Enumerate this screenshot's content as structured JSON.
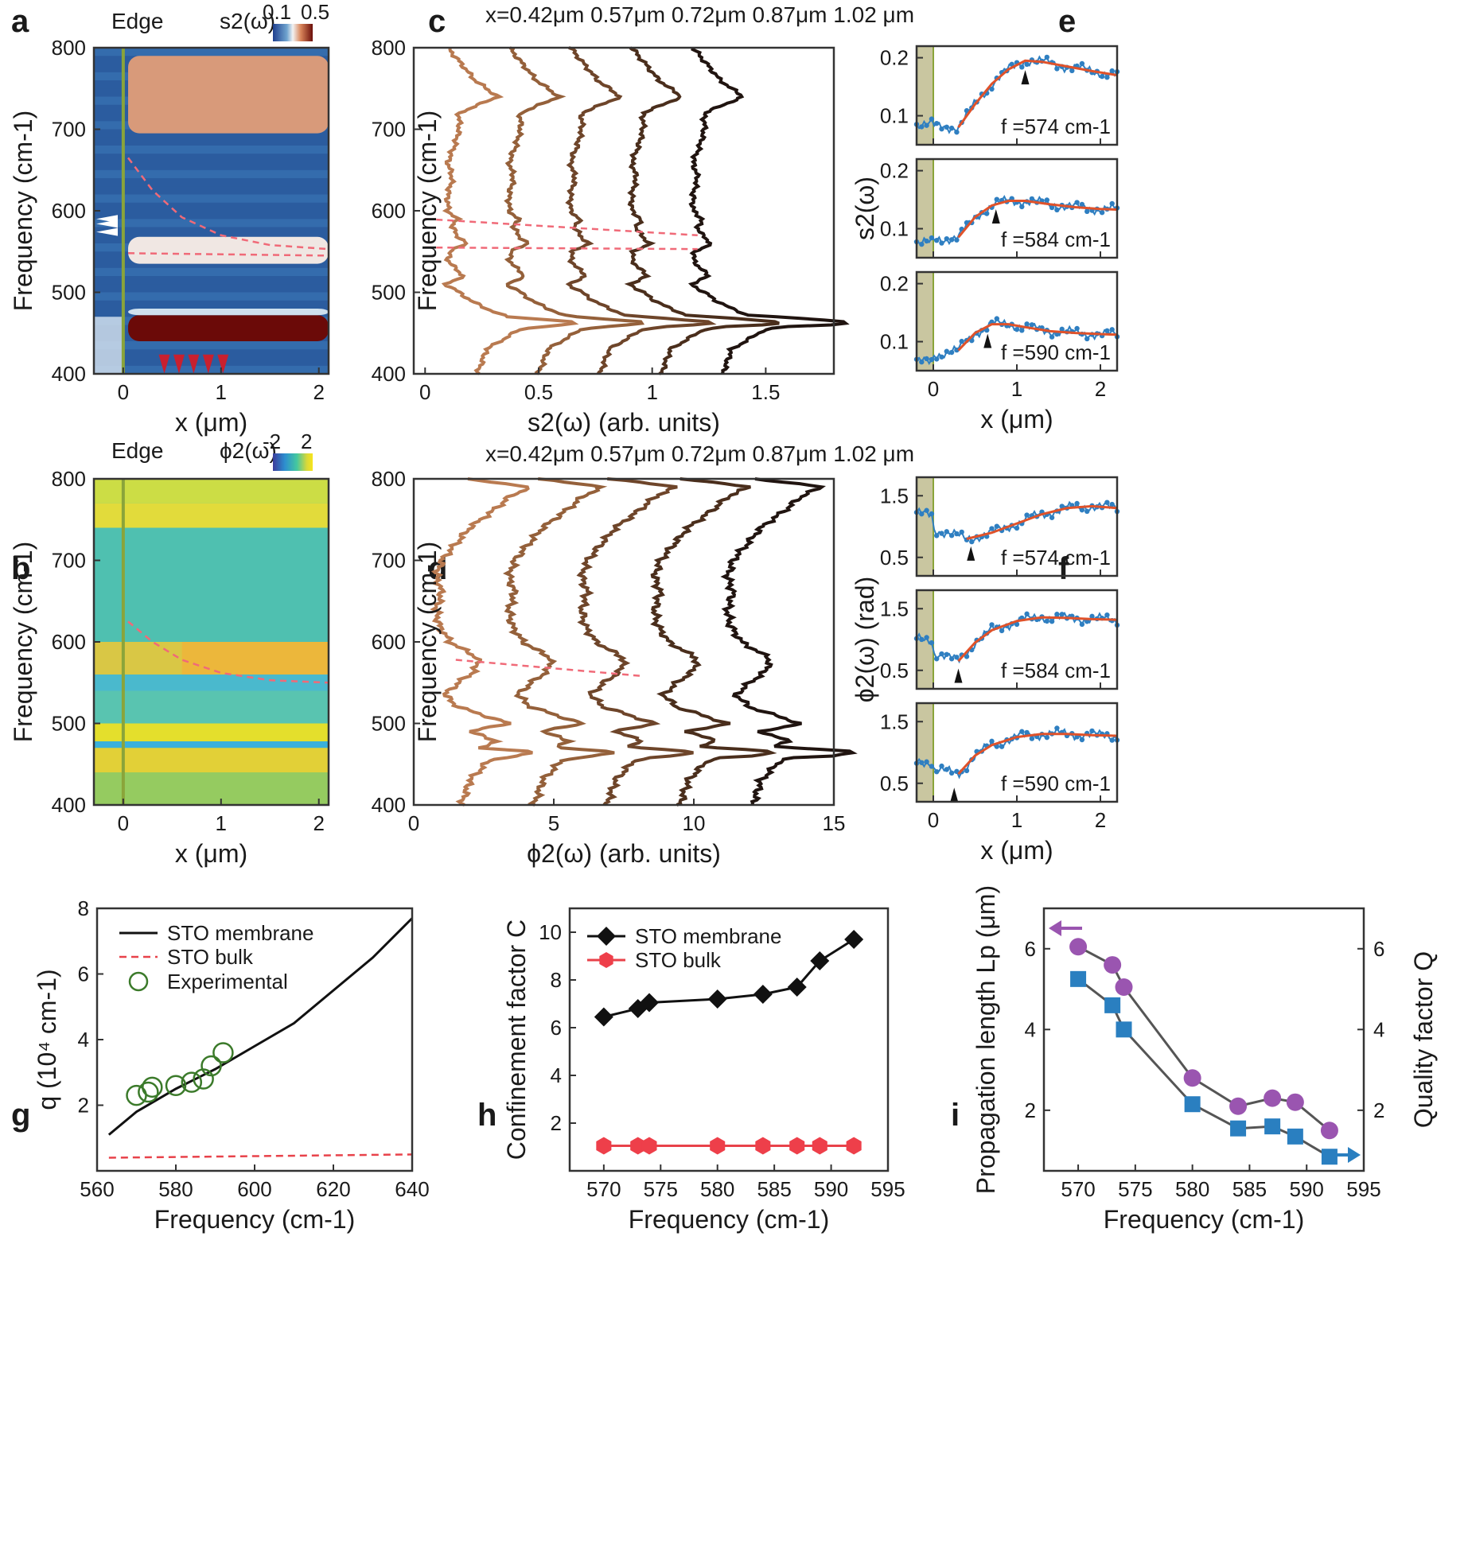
{
  "chart_data": [
    {
      "panel": "a",
      "type": "heatmap",
      "header": "Edge",
      "colorbar_label": "s2(ω)",
      "colorbar_ticks": [
        "0.1",
        "0.5"
      ],
      "xlabel": "x (μm)",
      "ylabel": "Frequency (cm-1)",
      "xlim": [
        -0.3,
        2.1
      ],
      "ylim": [
        400,
        800
      ],
      "xticks": [
        0,
        1,
        2
      ],
      "yticks": [
        400,
        500,
        600,
        700,
        800
      ],
      "edge_x": 0,
      "bands": [
        {
          "y0": 695,
          "y1": 790,
          "level": 0.72
        },
        {
          "y0": 535,
          "y1": 568,
          "level": 0.55
        },
        {
          "y0": 440,
          "y1": 472,
          "level": 1.0
        },
        {
          "y0": 472,
          "y1": 480,
          "level": 0.45
        }
      ],
      "dispersion_curve": [
        [
          0.05,
          665
        ],
        [
          0.3,
          625
        ],
        [
          0.6,
          592
        ],
        [
          1.0,
          570
        ],
        [
          1.5,
          558
        ],
        [
          2.1,
          553
        ]
      ],
      "flat_curve": [
        [
          0.05,
          548
        ],
        [
          2.1,
          545
        ]
      ],
      "arrow_x": [
        0.42,
        0.57,
        0.72,
        0.87,
        1.02
      ],
      "side_arrow_freqs": [
        574,
        584,
        590
      ]
    },
    {
      "panel": "b",
      "type": "heatmap",
      "header": "Edge",
      "colorbar_label": "ϕ2(ω)",
      "colorbar_ticks": [
        "-2",
        "2"
      ],
      "xlabel": "x (μm)",
      "ylabel": "Frequency (cm-1)",
      "xlim": [
        -0.3,
        2.1
      ],
      "ylim": [
        400,
        800
      ],
      "xticks": [
        0,
        1,
        2
      ],
      "yticks": [
        400,
        500,
        600,
        700,
        800
      ],
      "dispersion_curve": [
        [
          0.05,
          625
        ],
        [
          0.3,
          600
        ],
        [
          0.6,
          578
        ],
        [
          1.0,
          562
        ],
        [
          1.5,
          553
        ],
        [
          2.1,
          550
        ]
      ]
    },
    {
      "panel": "c",
      "type": "line",
      "header": "x=0.42μm  0.57μm  0.72μm  0.87μm  1.02 μm",
      "xlabel": "s2(ω) (arb. units)",
      "ylabel": "Frequency (cm-1)",
      "xlim": [
        -0.05,
        1.8
      ],
      "ylim": [
        400,
        800
      ],
      "xticks": [
        0,
        0.5,
        1,
        1.5
      ],
      "yticks": [
        400,
        500,
        600,
        700,
        800
      ],
      "offsets": [
        0,
        0.25,
        0.5,
        0.75,
        1.0
      ],
      "profile_f": [
        400,
        430,
        455,
        463,
        470,
        480,
        490,
        500,
        510,
        520,
        530,
        540,
        550,
        560,
        570,
        580,
        590,
        600,
        620,
        640,
        660,
        680,
        700,
        720,
        740,
        760,
        780,
        800
      ],
      "profile_v": [
        0.23,
        0.27,
        0.42,
        0.7,
        0.36,
        0.27,
        0.2,
        0.15,
        0.09,
        0.17,
        0.13,
        0.1,
        0.11,
        0.18,
        0.14,
        0.12,
        0.14,
        0.1,
        0.1,
        0.12,
        0.1,
        0.13,
        0.15,
        0.15,
        0.32,
        0.22,
        0.16,
        0.1
      ],
      "dashed_curves": [
        [
          [
            0.0,
            590
          ],
          [
            1.2,
            570
          ]
        ],
        [
          [
            0.0,
            555
          ],
          [
            1.2,
            553
          ]
        ]
      ]
    },
    {
      "panel": "d",
      "type": "line",
      "header": "x=0.42μm  0.57μm  0.72μm  0.87μm  1.02 μm",
      "xlabel": "ϕ2(ω) (arb. units)",
      "ylabel": "Frequency (cm-1)",
      "xlim": [
        0,
        15
      ],
      "ylim": [
        400,
        800
      ],
      "xticks": [
        0,
        5,
        10,
        15
      ],
      "yticks": [
        400,
        500,
        600,
        700,
        800
      ],
      "offsets": [
        0,
        2.6,
        5.2,
        7.8,
        10.4
      ],
      "profile_f": [
        400,
        430,
        455,
        465,
        470,
        478,
        490,
        500,
        510,
        520,
        535,
        550,
        565,
        580,
        590,
        600,
        620,
        640,
        660,
        680,
        700,
        720,
        740,
        760,
        780,
        790,
        800
      ],
      "profile_v": [
        1.7,
        2.0,
        2.7,
        4.5,
        2.3,
        3.0,
        2.0,
        3.4,
        2.5,
        1.6,
        1.1,
        1.6,
        2.2,
        2.3,
        1.8,
        1.3,
        0.9,
        0.8,
        1.0,
        0.8,
        1.0,
        1.5,
        2.0,
        2.8,
        3.5,
        4.2,
        1.8
      ],
      "dashed_curves": [
        [
          [
            1.5,
            578
          ],
          [
            8.2,
            558
          ]
        ]
      ]
    },
    {
      "panel": "e",
      "type": "line",
      "xlabel": "x (μm)",
      "ylabel": "s2(ω)",
      "xlim": [
        -0.2,
        2.2
      ],
      "xticks": [
        0,
        1,
        2
      ],
      "subplots": [
        {
          "label": "f =574 cm-1",
          "ylim": [
            0.05,
            0.22
          ],
          "yticks": [
            0.1,
            0.2
          ],
          "fit_x": [
            0.3,
            0.5,
            0.7,
            0.9,
            1.1,
            1.3,
            1.6,
            1.9,
            2.2
          ],
          "fit_y": [
            0.08,
            0.12,
            0.155,
            0.18,
            0.195,
            0.193,
            0.185,
            0.177,
            0.17
          ],
          "base": 0.085,
          "plateau": 0.19,
          "arrow_x": 1.1,
          "arrow_y": 0.165
        },
        {
          "label": "f =584 cm-1",
          "ylim": [
            0.05,
            0.22
          ],
          "yticks": [
            0.1,
            0.2
          ],
          "fit_x": [
            0.3,
            0.5,
            0.7,
            0.9,
            1.1,
            1.4,
            1.7,
            2.0,
            2.2
          ],
          "fit_y": [
            0.085,
            0.12,
            0.14,
            0.148,
            0.148,
            0.142,
            0.137,
            0.134,
            0.133
          ],
          "base": 0.075,
          "plateau": 0.14,
          "arrow_x": 0.75,
          "arrow_y": 0.12
        },
        {
          "label": "f =590 cm-1",
          "ylim": [
            0.05,
            0.22
          ],
          "yticks": [
            0.1,
            0.2
          ],
          "fit_x": [
            0.3,
            0.5,
            0.7,
            0.9,
            1.1,
            1.4,
            1.7,
            2.0,
            2.2
          ],
          "fit_y": [
            0.085,
            0.115,
            0.13,
            0.13,
            0.125,
            0.118,
            0.115,
            0.113,
            0.112
          ],
          "base": 0.065,
          "plateau": 0.12,
          "arrow_x": 0.65,
          "arrow_y": 0.1
        }
      ]
    },
    {
      "panel": "f",
      "type": "line",
      "xlabel": "x (μm)",
      "ylabel": "ϕ2(ω) (rad)",
      "xlim": [
        -0.2,
        2.2
      ],
      "xticks": [
        0,
        1,
        2
      ],
      "subplots": [
        {
          "label": "f =574 cm-1",
          "ylim": [
            0.2,
            1.8
          ],
          "yticks": [
            0.5,
            1.5
          ],
          "fit_x": [
            0.4,
            0.7,
            1.0,
            1.3,
            1.6,
            1.9,
            2.2
          ],
          "fit_y": [
            0.8,
            0.9,
            1.05,
            1.2,
            1.3,
            1.33,
            1.3
          ],
          "base": 1.2,
          "plateau": 1.25,
          "arrow_x": 0.45,
          "arrow_y": 0.55
        },
        {
          "label": "f =584 cm-1",
          "ylim": [
            0.2,
            1.8
          ],
          "yticks": [
            0.5,
            1.5
          ],
          "fit_x": [
            0.3,
            0.5,
            0.7,
            1.0,
            1.3,
            1.6,
            1.9,
            2.2
          ],
          "fit_y": [
            0.65,
            0.95,
            1.15,
            1.3,
            1.36,
            1.35,
            1.33,
            1.32
          ],
          "base": 1.0,
          "plateau": 1.35,
          "arrow_x": 0.3,
          "arrow_y": 0.4
        },
        {
          "label": "f =590 cm-1",
          "ylim": [
            0.2,
            1.8
          ],
          "yticks": [
            0.5,
            1.5
          ],
          "fit_x": [
            0.3,
            0.5,
            0.7,
            1.0,
            1.3,
            1.6,
            1.9,
            2.2
          ],
          "fit_y": [
            0.65,
            0.95,
            1.12,
            1.25,
            1.3,
            1.3,
            1.28,
            1.27
          ],
          "base": 0.85,
          "plateau": 1.28,
          "arrow_x": 0.25,
          "arrow_y": 0.3
        }
      ]
    },
    {
      "panel": "g",
      "type": "line",
      "xlabel": "Frequency (cm-1)",
      "ylabel": "q (10⁴ cm-1)",
      "xlim": [
        560,
        640
      ],
      "ylim": [
        0,
        8
      ],
      "xticks": [
        560,
        580,
        600,
        620,
        640
      ],
      "yticks": [
        2,
        4,
        6,
        8
      ],
      "legend": [
        "STO membrane",
        "STO bulk",
        "Experimental"
      ],
      "series": [
        {
          "name": "STO membrane",
          "x": [
            563,
            570,
            580,
            590,
            600,
            610,
            620,
            630,
            640
          ],
          "y": [
            1.1,
            1.8,
            2.5,
            3.1,
            3.8,
            4.5,
            5.5,
            6.5,
            7.7
          ]
        },
        {
          "name": "STO bulk",
          "x": [
            563,
            640
          ],
          "y": [
            0.4,
            0.5
          ]
        },
        {
          "name": "Experimental",
          "x": [
            570,
            573,
            574,
            580,
            584,
            587,
            589,
            592
          ],
          "y": [
            2.3,
            2.4,
            2.55,
            2.6,
            2.7,
            2.8,
            3.2,
            3.6
          ]
        }
      ]
    },
    {
      "panel": "h",
      "type": "line",
      "xlabel": "Frequency (cm-1)",
      "ylabel": "Confinement factor C",
      "xlim": [
        567,
        595
      ],
      "ylim": [
        0,
        11
      ],
      "xticks": [
        570,
        575,
        580,
        585,
        590,
        595
      ],
      "yticks": [
        2,
        4,
        6,
        8,
        10
      ],
      "legend": [
        "STO membrane",
        "STO bulk"
      ],
      "series": [
        {
          "name": "STO membrane",
          "x": [
            570,
            573,
            574,
            580,
            584,
            587,
            589,
            592
          ],
          "y": [
            6.45,
            6.8,
            7.05,
            7.2,
            7.4,
            7.7,
            8.8,
            9.7
          ]
        },
        {
          "name": "STO bulk",
          "x": [
            570,
            573,
            574,
            580,
            584,
            587,
            589,
            592
          ],
          "y": [
            1.05,
            1.05,
            1.05,
            1.05,
            1.05,
            1.05,
            1.05,
            1.05
          ]
        }
      ]
    },
    {
      "panel": "i",
      "type": "line",
      "xlabel": "Frequency (cm-1)",
      "ylabel": "Propagation length Lp (μm)",
      "ylabel_right": "Quality factor Q",
      "xlim": [
        567,
        595
      ],
      "ylim": [
        0.5,
        7
      ],
      "ylim_right": [
        0.5,
        7
      ],
      "xticks": [
        570,
        575,
        580,
        585,
        590,
        595
      ],
      "yticks": [
        2,
        4,
        6
      ],
      "yticks_right": [
        2,
        4,
        6
      ],
      "series": [
        {
          "name": "Lp",
          "x": [
            570,
            573,
            574,
            580,
            584,
            587,
            589,
            592
          ],
          "y": [
            6.05,
            5.6,
            5.05,
            2.8,
            2.1,
            2.3,
            2.2,
            1.5
          ]
        },
        {
          "name": "Q",
          "x": [
            570,
            573,
            574,
            580,
            584,
            587,
            589,
            592
          ],
          "y": [
            5.25,
            4.6,
            4.0,
            2.15,
            1.55,
            1.6,
            1.35,
            0.85
          ]
        }
      ]
    }
  ]
}
